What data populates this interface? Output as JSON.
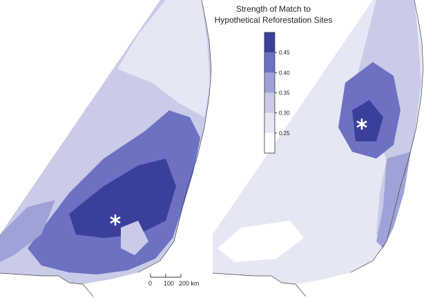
{
  "legend": {
    "title_lines": [
      "Strength of Match to",
      "Hypothetical Reforestation Sites"
    ],
    "colors": [
      "#ffffff",
      "#e6e7f4",
      "#c9cbe8",
      "#9ea2d6",
      "#6c71c2",
      "#3b3f9c"
    ],
    "ticks": [
      {
        "value": 0.25,
        "label": "0.25"
      },
      {
        "value": 0.3,
        "label": "0.30"
      },
      {
        "value": 0.35,
        "label": "0.35"
      },
      {
        "value": 0.4,
        "label": "0.40"
      },
      {
        "value": 0.45,
        "label": "0.45"
      }
    ]
  },
  "scale_bar": {
    "ticks": [
      0,
      100,
      {
        "value": 200,
        "label": "200 km"
      }
    ]
  }
}
